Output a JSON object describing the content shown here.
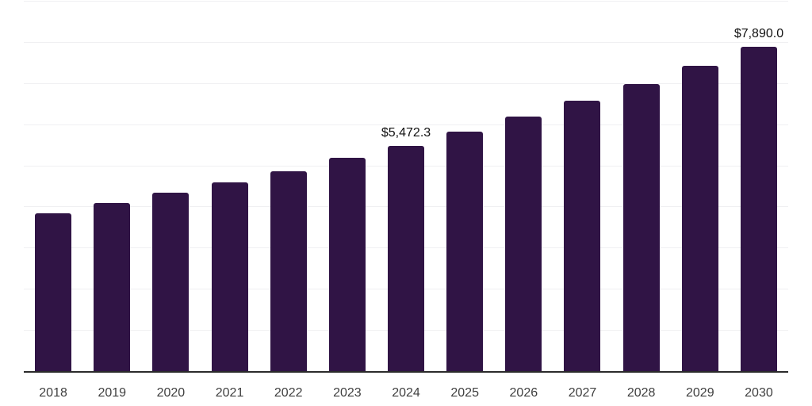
{
  "chart_data": {
    "type": "bar",
    "title": "",
    "xlabel": "",
    "ylabel": "",
    "categories": [
      "2018",
      "2019",
      "2020",
      "2021",
      "2022",
      "2023",
      "2024",
      "2025",
      "2026",
      "2027",
      "2028",
      "2029",
      "2030"
    ],
    "values": [
      3845,
      4080,
      4330,
      4585,
      4855,
      5185,
      5472.3,
      5816.4,
      6182.2,
      6571.0,
      6984.3,
      7423.4,
      7890.0
    ],
    "value_labels": {
      "2024": "$5,472.3",
      "2030": "$7,890.0"
    },
    "ylim": [
      0,
      9000
    ],
    "gridline_step": 1000,
    "grid": "horizontal",
    "legend_position": "none",
    "colors": {
      "bar": "#301445",
      "gridline": "#f0f0f2",
      "axis_line": "#2b2b2b",
      "tick_label": "#3f3f3f",
      "value_label": "#111111"
    }
  }
}
